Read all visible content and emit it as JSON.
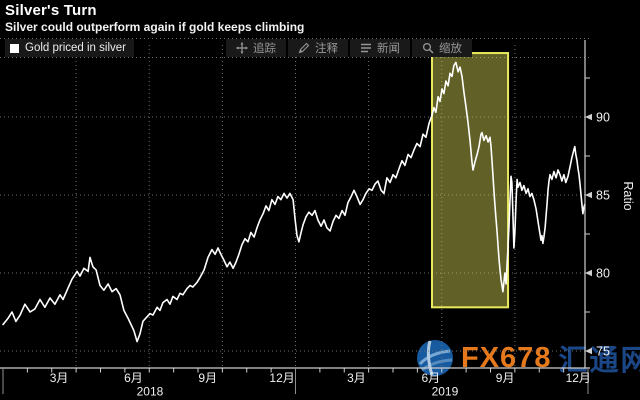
{
  "header": {
    "title": "Silver's Turn",
    "subtitle": "Silver could outperform again if gold keeps climbing"
  },
  "legend": {
    "label": "Gold priced in silver"
  },
  "toolbar": {
    "items": [
      {
        "icon": "track-icon",
        "label": "追踪"
      },
      {
        "icon": "annotate-icon",
        "label": "注释"
      },
      {
        "icon": "news-icon",
        "label": "新闻"
      },
      {
        "icon": "zoom-icon",
        "label": "缩放"
      }
    ]
  },
  "watermark": {
    "brand": "FX678",
    "site": "汇通网"
  },
  "colors": {
    "background": "#000000",
    "line": "#ffffff",
    "grid": "#6f6f6f",
    "axis": "#cfcfcf",
    "tick_label": "#f0f0f0",
    "highlight_fill": "rgba(220,220,88,0.44)",
    "highlight_stroke": "#e9e95f",
    "toolbar_text": "#979797",
    "brand_orange": "#f2801e",
    "site_blue": "#1d4b8f"
  },
  "chart_data": {
    "type": "line",
    "title": "Silver's Turn",
    "series_name": "Gold priced in silver",
    "ylabel": "Ratio",
    "x_unit": "months since 2018-01",
    "xlim": [
      0,
      24
    ],
    "ylim": [
      73.9,
      94.6
    ],
    "yticks": [
      75,
      80,
      85,
      90
    ],
    "yticks_minor": [
      77.5,
      82.5,
      87.5,
      92.5
    ],
    "grid": true,
    "grid_x_months": [
      3,
      6,
      9,
      12,
      15,
      18,
      21
    ],
    "month_tick_step": 1,
    "x_labels": [
      {
        "pos": 2.3,
        "label": "3月"
      },
      {
        "pos": 5.35,
        "label": "6月"
      },
      {
        "pos": 8.4,
        "label": "9月"
      },
      {
        "pos": 11.45,
        "label": "12月"
      },
      {
        "pos": 14.5,
        "label": "3月"
      },
      {
        "pos": 17.55,
        "label": "6月"
      },
      {
        "pos": 20.6,
        "label": "9月"
      },
      {
        "pos": 23.6,
        "label": "12月"
      }
    ],
    "year_labels": [
      {
        "pos": 6.03,
        "label": "2018"
      },
      {
        "pos": 18.13,
        "label": "2019"
      }
    ],
    "year_separators": [
      0,
      12,
      24
    ],
    "highlight_region": {
      "x0": 17.6,
      "x1": 20.72,
      "y0": 77.8,
      "y1": 94.1
    },
    "points": [
      [
        0,
        76.7
      ],
      [
        0.21,
        77.1
      ],
      [
        0.37,
        77.5
      ],
      [
        0.53,
        76.9
      ],
      [
        0.7,
        77.3
      ],
      [
        0.9,
        78
      ],
      [
        1.11,
        77.5
      ],
      [
        1.31,
        77.7
      ],
      [
        1.52,
        78.3
      ],
      [
        1.72,
        77.8
      ],
      [
        1.93,
        78.4
      ],
      [
        2.13,
        78
      ],
      [
        2.34,
        78.6
      ],
      [
        2.46,
        78.3
      ],
      [
        2.63,
        78.9
      ],
      [
        2.83,
        79.6
      ],
      [
        3.04,
        80.1
      ],
      [
        3.16,
        79.8
      ],
      [
        3.32,
        80.3
      ],
      [
        3.49,
        80.1
      ],
      [
        3.57,
        81
      ],
      [
        3.69,
        80.4
      ],
      [
        3.82,
        80.2
      ],
      [
        3.98,
        79.2
      ],
      [
        4.14,
        78.9
      ],
      [
        4.31,
        79.3
      ],
      [
        4.47,
        78.8
      ],
      [
        4.64,
        79
      ],
      [
        4.8,
        78.6
      ],
      [
        4.96,
        77.6
      ],
      [
        5.13,
        77.1
      ],
      [
        5.25,
        76.7
      ],
      [
        5.37,
        76.3
      ],
      [
        5.5,
        75.6
      ],
      [
        5.62,
        76.1
      ],
      [
        5.74,
        76.9
      ],
      [
        5.91,
        77.2
      ],
      [
        6.03,
        77.4
      ],
      [
        6.15,
        77.3
      ],
      [
        6.32,
        77.8
      ],
      [
        6.44,
        77.6
      ],
      [
        6.56,
        78.1
      ],
      [
        6.73,
        78.3
      ],
      [
        6.85,
        78
      ],
      [
        6.97,
        78.5
      ],
      [
        7.14,
        78.3
      ],
      [
        7.26,
        78.7
      ],
      [
        7.38,
        78.6
      ],
      [
        7.55,
        79
      ],
      [
        7.67,
        79.2
      ],
      [
        7.79,
        79.1
      ],
      [
        7.96,
        79.4
      ],
      [
        8.08,
        79.7
      ],
      [
        8.25,
        80.2
      ],
      [
        8.41,
        81
      ],
      [
        8.57,
        81.5
      ],
      [
        8.7,
        81.2
      ],
      [
        8.82,
        81.6
      ],
      [
        8.94,
        81.2
      ],
      [
        9.07,
        80.8
      ],
      [
        9.19,
        80.4
      ],
      [
        9.31,
        80.7
      ],
      [
        9.44,
        80.3
      ],
      [
        9.56,
        80.7
      ],
      [
        9.68,
        81.2
      ],
      [
        9.8,
        81.8
      ],
      [
        9.93,
        82.2
      ],
      [
        10.05,
        82
      ],
      [
        10.17,
        82.6
      ],
      [
        10.3,
        82.3
      ],
      [
        10.42,
        82.9
      ],
      [
        10.54,
        83.4
      ],
      [
        10.67,
        83.8
      ],
      [
        10.79,
        84.3
      ],
      [
        10.91,
        84
      ],
      [
        11.03,
        84.7
      ],
      [
        11.16,
        84.4
      ],
      [
        11.28,
        84.9
      ],
      [
        11.4,
        84.7
      ],
      [
        11.53,
        85.1
      ],
      [
        11.65,
        84.8
      ],
      [
        11.77,
        85.1
      ],
      [
        11.9,
        84.7
      ],
      [
        11.98,
        83.5
      ],
      [
        12.06,
        82.4
      ],
      [
        12.14,
        82
      ],
      [
        12.23,
        82.6
      ],
      [
        12.31,
        83.1
      ],
      [
        12.43,
        83.6
      ],
      [
        12.55,
        83.9
      ],
      [
        12.68,
        83.7
      ],
      [
        12.8,
        84
      ],
      [
        12.92,
        83.4
      ],
      [
        13.05,
        83
      ],
      [
        13.17,
        83.4
      ],
      [
        13.29,
        82.9
      ],
      [
        13.42,
        82.7
      ],
      [
        13.54,
        83.3
      ],
      [
        13.66,
        83.7
      ],
      [
        13.78,
        83.5
      ],
      [
        13.91,
        84
      ],
      [
        14.03,
        83.7
      ],
      [
        14.15,
        84.5
      ],
      [
        14.28,
        84.9
      ],
      [
        14.4,
        85.3
      ],
      [
        14.52,
        84.9
      ],
      [
        14.65,
        84.4
      ],
      [
        14.77,
        84.7
      ],
      [
        14.89,
        85.1
      ],
      [
        15.02,
        85.4
      ],
      [
        15.14,
        85.3
      ],
      [
        15.26,
        85.7
      ],
      [
        15.38,
        85.9
      ],
      [
        15.51,
        85.3
      ],
      [
        15.63,
        85.1
      ],
      [
        15.75,
        86.1
      ],
      [
        15.88,
        85.8
      ],
      [
        16,
        86.3
      ],
      [
        16.12,
        86.1
      ],
      [
        16.25,
        86.7
      ],
      [
        16.37,
        87.2
      ],
      [
        16.49,
        86.9
      ],
      [
        16.62,
        87.6
      ],
      [
        16.74,
        87.4
      ],
      [
        16.86,
        87.9
      ],
      [
        16.98,
        88.3
      ],
      [
        17.11,
        88.1
      ],
      [
        17.23,
        88.9
      ],
      [
        17.35,
        88.7
      ],
      [
        17.48,
        89.6
      ],
      [
        17.6,
        90.1
      ],
      [
        17.68,
        90.6
      ],
      [
        17.76,
        90.3
      ],
      [
        17.85,
        91.3
      ],
      [
        17.93,
        91
      ],
      [
        18.01,
        91.8
      ],
      [
        18.09,
        91.5
      ],
      [
        18.17,
        92.3
      ],
      [
        18.26,
        92
      ],
      [
        18.34,
        92.8
      ],
      [
        18.42,
        92.6
      ],
      [
        18.5,
        93.3
      ],
      [
        18.58,
        93.5
      ],
      [
        18.67,
        92.9
      ],
      [
        18.75,
        93.2
      ],
      [
        18.83,
        92.6
      ],
      [
        18.91,
        91.6
      ],
      [
        19,
        90.6
      ],
      [
        19.08,
        89.6
      ],
      [
        19.16,
        88.5
      ],
      [
        19.2,
        87.8
      ],
      [
        19.24,
        87.1
      ],
      [
        19.28,
        86.6
      ],
      [
        19.36,
        87.1
      ],
      [
        19.45,
        87.6
      ],
      [
        19.53,
        88.1
      ],
      [
        19.61,
        88.9
      ],
      [
        19.65,
        89
      ],
      [
        19.73,
        88.5
      ],
      [
        19.82,
        88.8
      ],
      [
        19.9,
        88.4
      ],
      [
        19.98,
        88.7
      ],
      [
        20.02,
        88.1
      ],
      [
        20.06,
        87.2
      ],
      [
        20.1,
        86.3
      ],
      [
        20.14,
        85.3
      ],
      [
        20.18,
        84.4
      ],
      [
        20.23,
        83.4
      ],
      [
        20.27,
        82.6
      ],
      [
        20.31,
        81.7
      ],
      [
        20.35,
        80.9
      ],
      [
        20.39,
        80.2
      ],
      [
        20.43,
        79.6
      ],
      [
        20.47,
        79.2
      ],
      [
        20.51,
        78.8
      ],
      [
        20.55,
        79.4
      ],
      [
        20.59,
        80
      ],
      [
        20.64,
        79.3
      ],
      [
        20.68,
        80.6
      ],
      [
        20.72,
        81.6
      ],
      [
        20.76,
        83
      ],
      [
        20.8,
        84.7
      ],
      [
        20.84,
        86.2
      ],
      [
        20.88,
        85.8
      ],
      [
        20.92,
        83.8
      ],
      [
        20.96,
        81.6
      ],
      [
        21,
        82.6
      ],
      [
        21.05,
        84.7
      ],
      [
        21.09,
        86
      ],
      [
        21.13,
        85.5
      ],
      [
        21.21,
        85.8
      ],
      [
        21.29,
        85.3
      ],
      [
        21.37,
        85.6
      ],
      [
        21.46,
        85.1
      ],
      [
        21.54,
        85.4
      ],
      [
        21.62,
        84.9
      ],
      [
        21.7,
        85.1
      ],
      [
        21.78,
        84.7
      ],
      [
        21.87,
        84.1
      ],
      [
        21.95,
        83.3
      ],
      [
        22.03,
        82.5
      ],
      [
        22.07,
        82.1
      ],
      [
        22.11,
        82.4
      ],
      [
        22.15,
        81.9
      ],
      [
        22.19,
        82.3
      ],
      [
        22.24,
        82.9
      ],
      [
        22.28,
        83.7
      ],
      [
        22.32,
        84.4
      ],
      [
        22.36,
        85.3
      ],
      [
        22.4,
        85.9
      ],
      [
        22.44,
        86.3
      ],
      [
        22.52,
        86
      ],
      [
        22.6,
        86.5
      ],
      [
        22.69,
        86.1
      ],
      [
        22.77,
        86.6
      ],
      [
        22.85,
        86.3
      ],
      [
        22.93,
        85.9
      ],
      [
        23.01,
        86.3
      ],
      [
        23.09,
        85.8
      ],
      [
        23.18,
        86.2
      ],
      [
        23.26,
        86.8
      ],
      [
        23.34,
        87.4
      ],
      [
        23.42,
        87.9
      ],
      [
        23.46,
        88.1
      ],
      [
        23.5,
        87.6
      ],
      [
        23.55,
        87.2
      ],
      [
        23.59,
        86.7
      ],
      [
        23.63,
        86.3
      ],
      [
        23.67,
        85.7
      ],
      [
        23.71,
        85.1
      ],
      [
        23.75,
        84.4
      ],
      [
        23.79,
        83.8
      ],
      [
        23.83,
        84.2
      ],
      [
        23.87,
        84.4
      ]
    ]
  }
}
